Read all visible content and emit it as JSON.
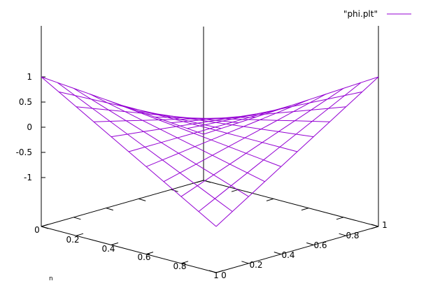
{
  "chart_data": {
    "type": "surface",
    "title": "",
    "legend": {
      "label": "\"phi.plt\"",
      "position": "top-right"
    },
    "series": [
      {
        "name": "\"phi.plt\"",
        "color": "#9400d3",
        "function": "z = (2x - 1)(2y - 1)",
        "grid": [
          11,
          11
        ]
      }
    ],
    "x": {
      "range": [
        0,
        1
      ],
      "ticks": [
        0,
        0.2,
        0.4,
        0.6,
        0.8,
        1
      ],
      "tick_labels": [
        "0",
        "0.2",
        "0.4",
        "0.6",
        "0.8",
        "1"
      ]
    },
    "y": {
      "range": [
        0,
        1
      ],
      "ticks": [
        0,
        0.2,
        0.4,
        0.6,
        0.8,
        1
      ],
      "tick_labels": [
        "0",
        "0.2",
        "0.4",
        "0.6",
        "0.8",
        "1"
      ]
    },
    "z": {
      "range": [
        -1,
        1
      ],
      "ticks": [
        1,
        0.5,
        0,
        -0.5,
        -1
      ],
      "tick_labels": [
        "1",
        "0.5",
        "0",
        "-0.5",
        "-1"
      ]
    },
    "stray_mark": "n",
    "border_color": "#000000",
    "surface_color": "#9400d3"
  }
}
